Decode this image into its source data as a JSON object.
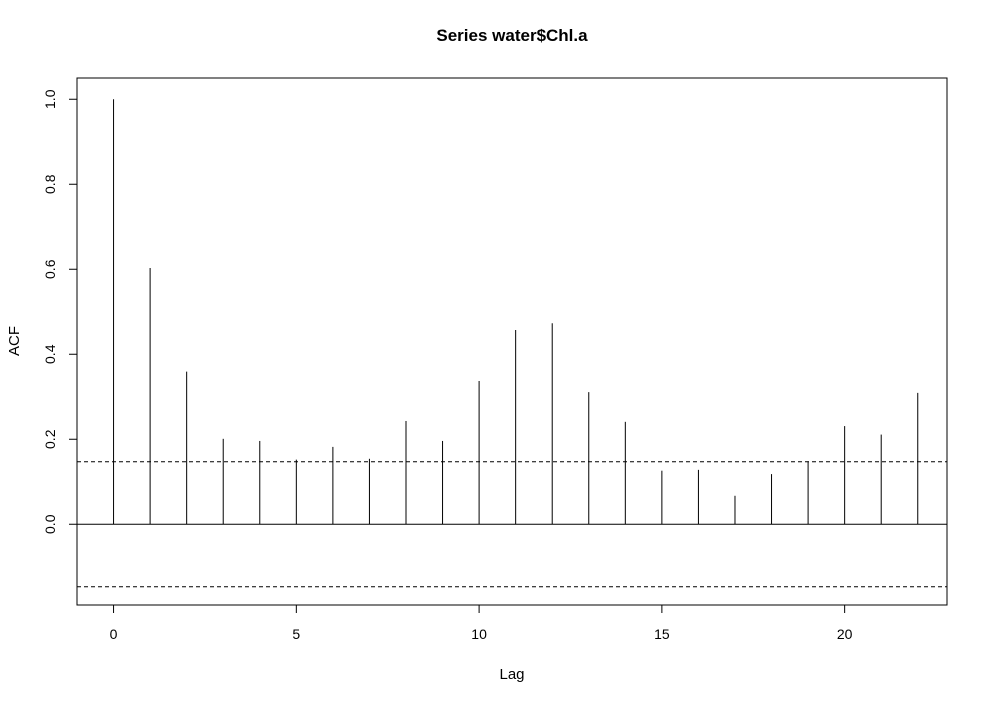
{
  "chart_data": {
    "type": "bar",
    "title": "Series  water$Chl.a",
    "xlabel": "Lag",
    "ylabel": "ACF",
    "xlim": [
      -1,
      22.8
    ],
    "ylim": [
      -0.19,
      1.05
    ],
    "x_ticks": [
      0,
      5,
      10,
      15,
      20
    ],
    "x_tick_labels": [
      "0",
      "5",
      "10",
      "15",
      "20"
    ],
    "y_ticks": [
      0.0,
      0.2,
      0.4,
      0.6,
      0.8,
      1.0
    ],
    "y_tick_labels": [
      "0.0",
      "0.2",
      "0.4",
      "0.6",
      "0.8",
      "1.0"
    ],
    "lags": [
      0,
      1,
      2,
      3,
      4,
      5,
      6,
      7,
      8,
      9,
      10,
      11,
      12,
      13,
      14,
      15,
      16,
      17,
      18,
      19,
      20,
      21,
      22
    ],
    "acf": [
      1.0,
      0.603,
      0.359,
      0.201,
      0.196,
      0.152,
      0.182,
      0.154,
      0.243,
      0.196,
      0.337,
      0.457,
      0.473,
      0.311,
      0.241,
      0.126,
      0.128,
      0.067,
      0.118,
      0.148,
      0.231,
      0.211,
      0.309
    ],
    "confidence_bound": 0.147,
    "grid": false
  }
}
